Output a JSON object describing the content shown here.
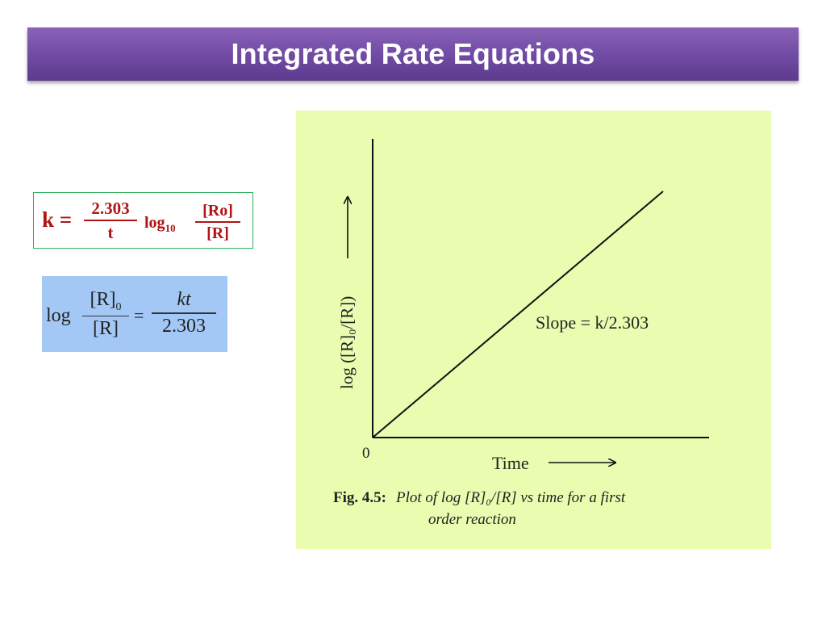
{
  "title": "Integrated Rate Equations",
  "formula_1": {
    "lhs": "k =",
    "frac_num": "2.303",
    "frac_den": "t",
    "log": "log",
    "log_base": "10",
    "ratio_num": "[Ro]",
    "ratio_den": "[R]"
  },
  "formula_2": {
    "log": "log",
    "num_main": "[R]",
    "num_sub": "0",
    "den": "[R]",
    "equals": "=",
    "rhs_num": "kt",
    "rhs_den": "2.303"
  },
  "colors": {
    "title_bar": "#7a52ad",
    "formula_1_text": "#b01515",
    "formula_1_border": "#2fb05a",
    "formula_2_bg": "#a4c8f6",
    "chart_bg": "#e9fcb0"
  },
  "chart_data": {
    "type": "line",
    "title": "",
    "xlabel": "Time",
    "ylabel": "log ([R]₀/[R])",
    "origin_label": "0",
    "x_ticks": [],
    "y_ticks": [],
    "series": [
      {
        "x": [
          0,
          1
        ],
        "y": [
          0,
          1
        ]
      }
    ],
    "annotation": "Slope = k/2.303",
    "grid": false,
    "caption_label": "Fig. 4.5:",
    "caption_line1": "Plot of log [R]₀/[R] vs time for a first",
    "caption_line2": "order reaction"
  }
}
